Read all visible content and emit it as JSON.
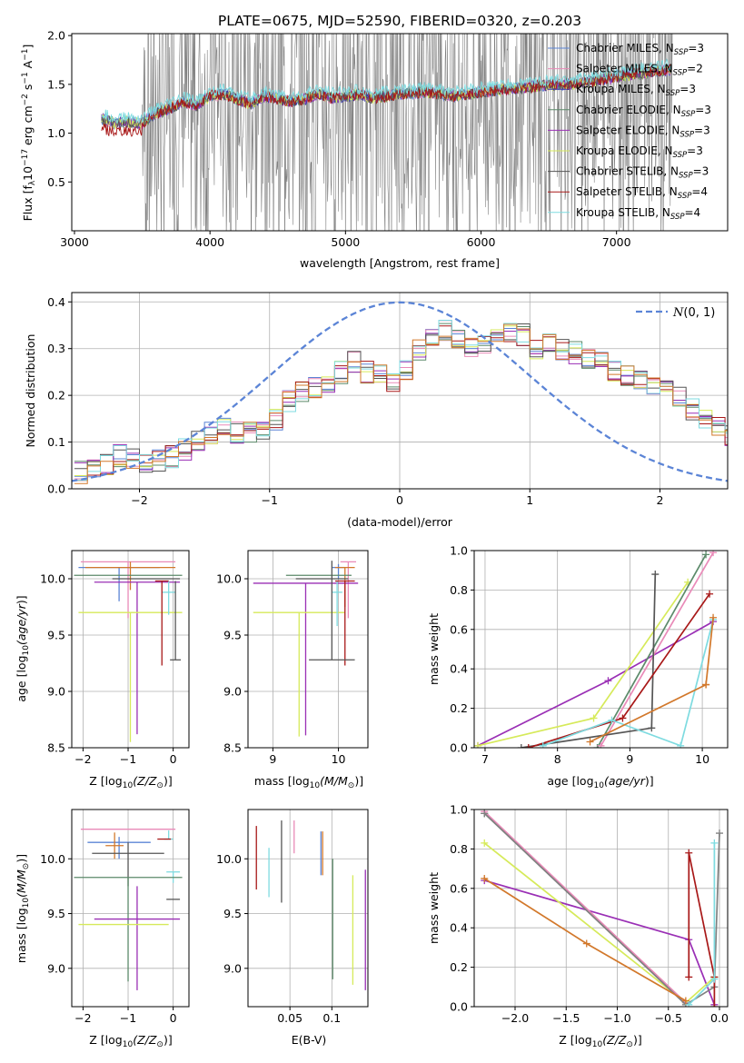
{
  "figure_title": "PLATE=0675, MJD=52590, FIBERID=0320, z=0.203",
  "colors": {
    "chabrier_miles": "#5b84d6",
    "salpeter_miles": "#e98ab8",
    "kroupa_miles": "#3a3aa8",
    "chabrier_elodie": "#5c8a6a",
    "salpeter_elodie": "#9a2fb5",
    "kroupa_elodie": "#d6ea5a",
    "chabrier_stelib": "#555555",
    "salpeter_stelib": "#a81818",
    "kroupa_stelib": "#7edbe0",
    "orange": "#d2782b",
    "data_gray": "#808080",
    "normal_curve": "#5b84d6"
  },
  "chart_data": [
    {
      "id": "spectrum",
      "type": "line",
      "xlabel": "wavelength [Angstrom, rest frame]",
      "ylabel": "Flux [f_λ 10^-17 erg cm^-2 s^-1 A^-1]",
      "xlim": [
        2980,
        7820
      ],
      "ylim": [
        0.0,
        2.02
      ],
      "xticks": [
        3000,
        4000,
        5000,
        6000,
        7000
      ],
      "yticks": [
        0.5,
        1.0,
        1.5,
        2.0
      ],
      "legend": [
        {
          "label": "Chabrier MILES, N_SSP=3",
          "color": "#5b84d6"
        },
        {
          "label": "Salpeter MILES, N_SSP=2",
          "color": "#e98ab8"
        },
        {
          "label": "Kroupa MILES, N_SSP=3",
          "color": "#3a3aa8"
        },
        {
          "label": "Chabrier ELODIE, N_SSP=3",
          "color": "#5c8a6a"
        },
        {
          "label": "Salpeter ELODIE, N_SSP=3",
          "color": "#9a2fb5"
        },
        {
          "label": "Kroupa ELODIE, N_SSP=3",
          "color": "#d6ea5a"
        },
        {
          "label": "Chabrier STELIB, N_SSP=3",
          "color": "#555555"
        },
        {
          "label": "Salpeter STELIB, N_SSP=4",
          "color": "#a81818"
        },
        {
          "label": "Kroupa STELIB, N_SSP=4",
          "color": "#7edbe0"
        }
      ],
      "model_curve": {
        "x": [
          3200,
          3300,
          3400,
          3500,
          3600,
          3700,
          3800,
          3900,
          4000,
          4100,
          4200,
          4300,
          4400,
          4500,
          4600,
          4700,
          4800,
          4900,
          5000,
          5100,
          5200,
          5400,
          5600,
          5800,
          6000,
          6200,
          6400,
          6600,
          6800,
          7000,
          7200,
          7400
        ],
        "y": [
          1.15,
          1.1,
          1.12,
          1.1,
          1.2,
          1.25,
          1.32,
          1.28,
          1.38,
          1.4,
          1.35,
          1.3,
          1.38,
          1.35,
          1.32,
          1.35,
          1.4,
          1.36,
          1.38,
          1.4,
          1.36,
          1.4,
          1.42,
          1.38,
          1.42,
          1.45,
          1.48,
          1.5,
          1.52,
          1.58,
          1.62,
          1.65
        ]
      }
    },
    {
      "id": "residual-histogram",
      "type": "step",
      "xlabel": "(data-model)/error",
      "ylabel": "Normed distribution",
      "xlim": [
        -2.52,
        2.52
      ],
      "ylim": [
        0.0,
        0.42
      ],
      "xticks": [
        -2,
        -1,
        0,
        1,
        2
      ],
      "yticks": [
        0.0,
        0.1,
        0.2,
        0.3,
        0.4
      ],
      "legend": [
        {
          "label": "N(0,1)",
          "style": "dashed"
        }
      ],
      "bin_width": 0.1,
      "profile": [
        0.035,
        0.04,
        0.05,
        0.07,
        0.065,
        0.055,
        0.06,
        0.07,
        0.085,
        0.1,
        0.12,
        0.14,
        0.12,
        0.12,
        0.13,
        0.15,
        0.19,
        0.21,
        0.22,
        0.23,
        0.25,
        0.27,
        0.25,
        0.24,
        0.23,
        0.25,
        0.3,
        0.33,
        0.34,
        0.32,
        0.3,
        0.31,
        0.33,
        0.34,
        0.33,
        0.3,
        0.31,
        0.3,
        0.29,
        0.28,
        0.27,
        0.25,
        0.24,
        0.23,
        0.22,
        0.21,
        0.2,
        0.17,
        0.15,
        0.13,
        0.11,
        0.1,
        0.09,
        0.08,
        0.09,
        0.1,
        0.09,
        0.08,
        0.07,
        0.06
      ]
    },
    {
      "id": "age-vs-Z",
      "type": "errorbar",
      "xlabel": "Z [log10(Z/Z☉)]",
      "ylabel": "age [log10(age/yr)]",
      "xlim": [
        -2.25,
        0.35
      ],
      "ylim": [
        8.5,
        10.25
      ],
      "xticks": [
        -2,
        -1,
        0
      ],
      "yticks": [
        8.5,
        9.0,
        9.5,
        10.0
      ],
      "points": [
        {
          "x": -1.0,
          "y": 10.15,
          "xerr": 1.05,
          "yerr_lo": 0.5,
          "yerr_hi": 0.0,
          "color": "#e98ab8"
        },
        {
          "x": -1.2,
          "y": 10.1,
          "xerr": 0.9,
          "yerr_lo": 0.3,
          "yerr_hi": 0.0,
          "color": "#5b84d6"
        },
        {
          "x": -0.95,
          "y": 10.1,
          "xerr": 1.0,
          "yerr_lo": 0.2,
          "yerr_hi": 0.05,
          "color": "#d2782b"
        },
        {
          "x": -1.0,
          "y": 10.03,
          "xerr": 1.2,
          "yerr_lo": 0.0,
          "yerr_hi": 0.0,
          "color": "#5c8a6a"
        },
        {
          "x": -0.6,
          "y": 10.0,
          "xerr": 0.75,
          "yerr_lo": 0.0,
          "yerr_hi": 0.0,
          "color": "#555555"
        },
        {
          "x": -0.8,
          "y": 9.97,
          "xerr": 0.95,
          "yerr_lo": 1.35,
          "yerr_hi": 0.0,
          "color": "#9a2fb5"
        },
        {
          "x": -0.95,
          "y": 9.7,
          "xerr": 1.15,
          "yerr_lo": 1.15,
          "yerr_hi": 0.0,
          "color": "#d6ea5a"
        },
        {
          "x": -0.1,
          "y": 9.88,
          "xerr": 0.15,
          "yerr_lo": 0.2,
          "yerr_hi": 0.1,
          "color": "#7edbe0"
        },
        {
          "x": -0.25,
          "y": 9.98,
          "xerr": 0.15,
          "yerr_lo": 0.75,
          "yerr_hi": 0.0,
          "color": "#a81818"
        },
        {
          "x": 0.05,
          "y": 9.28,
          "xerr": 0.12,
          "yerr_lo": 0.0,
          "yerr_hi": 0.7,
          "color": "#555555"
        }
      ]
    },
    {
      "id": "age-vs-mass",
      "type": "errorbar",
      "xlabel": "mass [log10(M/M☉)]",
      "ylabel": "",
      "xlim": [
        8.62,
        10.45
      ],
      "ylim": [
        8.5,
        10.25
      ],
      "xticks": [
        9,
        10
      ],
      "yticks": [
        8.5,
        9.0,
        9.5,
        10.0
      ],
      "points": [
        {
          "x": 10.15,
          "y": 10.15,
          "xerr": 0.12,
          "yerr_lo": 0.5,
          "yerr_hi": 0.0,
          "color": "#e98ab8"
        },
        {
          "x": 10.0,
          "y": 10.1,
          "xerr": 0.1,
          "yerr_lo": 0.1,
          "yerr_hi": 0.03,
          "color": "#5b84d6"
        },
        {
          "x": 10.1,
          "y": 10.1,
          "xerr": 0.15,
          "yerr_lo": 0.35,
          "yerr_hi": 0.0,
          "color": "#d2782b"
        },
        {
          "x": 9.7,
          "y": 10.03,
          "xerr": 0.5,
          "yerr_lo": 0.0,
          "yerr_hi": 0.0,
          "color": "#5c8a6a"
        },
        {
          "x": 9.75,
          "y": 10.0,
          "xerr": 0.4,
          "yerr_lo": 0.0,
          "yerr_hi": 0.0,
          "color": "#555555"
        },
        {
          "x": 9.5,
          "y": 9.96,
          "xerr": 0.8,
          "yerr_lo": 1.35,
          "yerr_hi": 0.0,
          "color": "#9a2fb5"
        },
        {
          "x": 9.4,
          "y": 9.7,
          "xerr": 0.7,
          "yerr_lo": 1.1,
          "yerr_hi": 0.0,
          "color": "#d6ea5a"
        },
        {
          "x": 9.98,
          "y": 9.88,
          "xerr": 0.08,
          "yerr_lo": 0.3,
          "yerr_hi": 0.1,
          "color": "#7edbe0"
        },
        {
          "x": 10.1,
          "y": 9.98,
          "xerr": 0.15,
          "yerr_lo": 0.75,
          "yerr_hi": 0.0,
          "color": "#a81818"
        },
        {
          "x": 9.9,
          "y": 9.28,
          "xerr": 0.35,
          "yerr_lo": 0.0,
          "yerr_hi": 0.88,
          "color": "#555555"
        }
      ]
    },
    {
      "id": "mass-weight-vs-age",
      "type": "line",
      "xlabel": "age [log10(age/yr)]",
      "ylabel": "mass weight",
      "xlim": [
        6.85,
        10.35
      ],
      "ylim": [
        0.0,
        1.0
      ],
      "xticks": [
        7,
        8,
        9,
        10
      ],
      "yticks": [
        0.0,
        0.2,
        0.4,
        0.6,
        0.8,
        1.0
      ],
      "series": [
        {
          "color": "#9a2fb5",
          "x": [
            6.9,
            8.7,
            10.15
          ],
          "y": [
            0.01,
            0.34,
            0.64
          ]
        },
        {
          "color": "#d6ea5a",
          "x": [
            6.9,
            8.5,
            9.8
          ],
          "y": [
            0.01,
            0.15,
            0.84
          ]
        },
        {
          "color": "#5c8a6a",
          "x": [
            8.55,
            10.05
          ],
          "y": [
            0.0,
            0.98
          ]
        },
        {
          "color": "#e98ab8",
          "x": [
            8.6,
            10.15
          ],
          "y": [
            0.01,
            0.99
          ]
        },
        {
          "color": "#555555",
          "x": [
            7.5,
            9.3,
            9.35
          ],
          "y": [
            0.0,
            0.1,
            0.88
          ]
        },
        {
          "color": "#a81818",
          "x": [
            7.6,
            8.9,
            10.1
          ],
          "y": [
            0.0,
            0.15,
            0.78
          ]
        },
        {
          "color": "#7edbe0",
          "x": [
            7.8,
            8.75,
            9.7,
            10.15
          ],
          "y": [
            0.01,
            0.14,
            0.01,
            0.65
          ]
        },
        {
          "color": "#d2782b",
          "x": [
            8.45,
            10.05
          ],
          "y": [
            0.03,
            0.32
          ]
        },
        {
          "color": "#d2782b",
          "x": [
            10.05,
            10.15
          ],
          "y": [
            0.32,
            0.66
          ]
        }
      ]
    },
    {
      "id": "mass-vs-Z",
      "type": "errorbar",
      "xlabel": "Z [log10(Z/Z☉)]",
      "ylabel": "mass [log10(M/M☉)]",
      "xlim": [
        -2.25,
        0.35
      ],
      "ylim": [
        8.65,
        10.45
      ],
      "xticks": [
        -2,
        -1,
        0
      ],
      "yticks": [
        9.0,
        9.5,
        10.0
      ],
      "points": [
        {
          "x": -1.0,
          "y": 10.27,
          "xerr": 1.05,
          "yerr_lo": 0.0,
          "yerr_hi": 0.0,
          "color": "#e98ab8"
        },
        {
          "x": -1.2,
          "y": 10.15,
          "xerr": 0.7,
          "yerr_lo": 0.15,
          "yerr_hi": 0.05,
          "color": "#5b84d6"
        },
        {
          "x": -1.3,
          "y": 10.12,
          "xerr": 0.2,
          "yerr_lo": 0.12,
          "yerr_hi": 0.12,
          "color": "#d2782b"
        },
        {
          "x": -0.1,
          "y": 10.18,
          "xerr": 0.1,
          "yerr_lo": 0.0,
          "yerr_hi": 0.08,
          "color": "#7edbe0"
        },
        {
          "x": -0.2,
          "y": 10.18,
          "xerr": 0.15,
          "yerr_lo": 0.0,
          "yerr_hi": 0.0,
          "color": "#a81818"
        },
        {
          "x": -1.0,
          "y": 10.05,
          "xerr": 0.8,
          "yerr_lo": 0.3,
          "yerr_hi": 0.1,
          "color": "#555555"
        },
        {
          "x": 0.0,
          "y": 9.88,
          "xerr": 0.15,
          "yerr_lo": 0.1,
          "yerr_hi": 0.0,
          "color": "#7edbe0"
        },
        {
          "x": -1.0,
          "y": 9.83,
          "xerr": 1.2,
          "yerr_lo": 0.95,
          "yerr_hi": 0.0,
          "color": "#5c8a6a"
        },
        {
          "x": -0.8,
          "y": 9.45,
          "xerr": 0.95,
          "yerr_lo": 0.65,
          "yerr_hi": 0.3,
          "color": "#9a2fb5"
        },
        {
          "x": -1.1,
          "y": 9.4,
          "xerr": 1.0,
          "yerr_lo": 0.0,
          "yerr_hi": 0.0,
          "color": "#d6ea5a"
        },
        {
          "x": 0.0,
          "y": 9.63,
          "xerr": 0.15,
          "yerr_lo": 0.0,
          "yerr_hi": 0.0,
          "color": "#555555"
        }
      ]
    },
    {
      "id": "mass-vs-ebv",
      "type": "errorbar",
      "xlabel": "E(B-V)",
      "ylabel": "",
      "xlim": [
        0.0,
        0.143
      ],
      "ylim": [
        8.65,
        10.45
      ],
      "xticks": [
        0.05,
        0.1
      ],
      "yticks": [
        9.0,
        9.5,
        10.0
      ],
      "points": [
        {
          "x": 0.01,
          "y": 10.0,
          "xerr": 0.0,
          "yerr_lo": 0.28,
          "yerr_hi": 0.3,
          "color": "#a81818"
        },
        {
          "x": 0.025,
          "y": 9.9,
          "xerr": 0.0,
          "yerr_lo": 0.25,
          "yerr_hi": 0.2,
          "color": "#7edbe0"
        },
        {
          "x": 0.04,
          "y": 10.0,
          "xerr": 0.0,
          "yerr_lo": 0.4,
          "yerr_hi": 0.35,
          "color": "#555555"
        },
        {
          "x": 0.055,
          "y": 10.25,
          "xerr": 0.0,
          "yerr_lo": 0.2,
          "yerr_hi": 0.1,
          "color": "#e98ab8"
        },
        {
          "x": 0.087,
          "y": 10.05,
          "xerr": 0.0,
          "yerr_lo": 0.2,
          "yerr_hi": 0.2,
          "color": "#5b84d6"
        },
        {
          "x": 0.089,
          "y": 10.1,
          "xerr": 0.0,
          "yerr_lo": 0.25,
          "yerr_hi": 0.15,
          "color": "#d2782b"
        },
        {
          "x": 0.101,
          "y": 9.45,
          "xerr": 0.0,
          "yerr_lo": 0.55,
          "yerr_hi": 0.55,
          "color": "#5c8a6a"
        },
        {
          "x": 0.125,
          "y": 9.3,
          "xerr": 0.0,
          "yerr_lo": 0.45,
          "yerr_hi": 0.55,
          "color": "#d6ea5a"
        },
        {
          "x": 0.14,
          "y": 9.35,
          "xerr": 0.0,
          "yerr_lo": 0.55,
          "yerr_hi": 0.55,
          "color": "#9a2fb5"
        }
      ]
    },
    {
      "id": "mass-weight-vs-Z",
      "type": "line",
      "xlabel": "Z [log10(Z/Z☉)]",
      "ylabel": "mass weight",
      "xlim": [
        -2.4,
        0.08
      ],
      "ylim": [
        0.0,
        1.0
      ],
      "xticks": [
        -2.0,
        -1.5,
        -1.0,
        -0.5,
        0.0
      ],
      "yticks": [
        0.0,
        0.2,
        0.4,
        0.6,
        0.8,
        1.0
      ],
      "series": [
        {
          "color": "#9a2fb5",
          "x": [
            -2.3,
            -0.3,
            -0.05
          ],
          "y": [
            0.64,
            0.34,
            0.01
          ]
        },
        {
          "color": "#d6ea5a",
          "x": [
            -2.3,
            -0.33,
            -0.05
          ],
          "y": [
            0.83,
            0.02,
            0.15
          ]
        },
        {
          "color": "#5c8a6a",
          "x": [
            -2.3,
            -0.33
          ],
          "y": [
            0.98,
            0.02
          ]
        },
        {
          "color": "#e98ab8",
          "x": [
            -2.3,
            -0.33
          ],
          "y": [
            0.99,
            0.02
          ]
        },
        {
          "color": "#808080",
          "x": [
            -2.3,
            -0.33,
            -0.05,
            0.0
          ],
          "y": [
            0.98,
            0.01,
            0.1,
            0.88
          ]
        },
        {
          "color": "#a81818",
          "x": [
            -0.3,
            -0.3,
            -0.05,
            -0.05
          ],
          "y": [
            0.15,
            0.78,
            0.15,
            0.0
          ]
        },
        {
          "color": "#7edbe0",
          "x": [
            -0.3,
            -0.05,
            -0.05
          ],
          "y": [
            0.01,
            0.14,
            0.83
          ]
        },
        {
          "color": "#d2782b",
          "x": [
            -2.3,
            -1.3,
            -0.33
          ],
          "y": [
            0.65,
            0.32,
            0.03
          ]
        }
      ]
    }
  ]
}
